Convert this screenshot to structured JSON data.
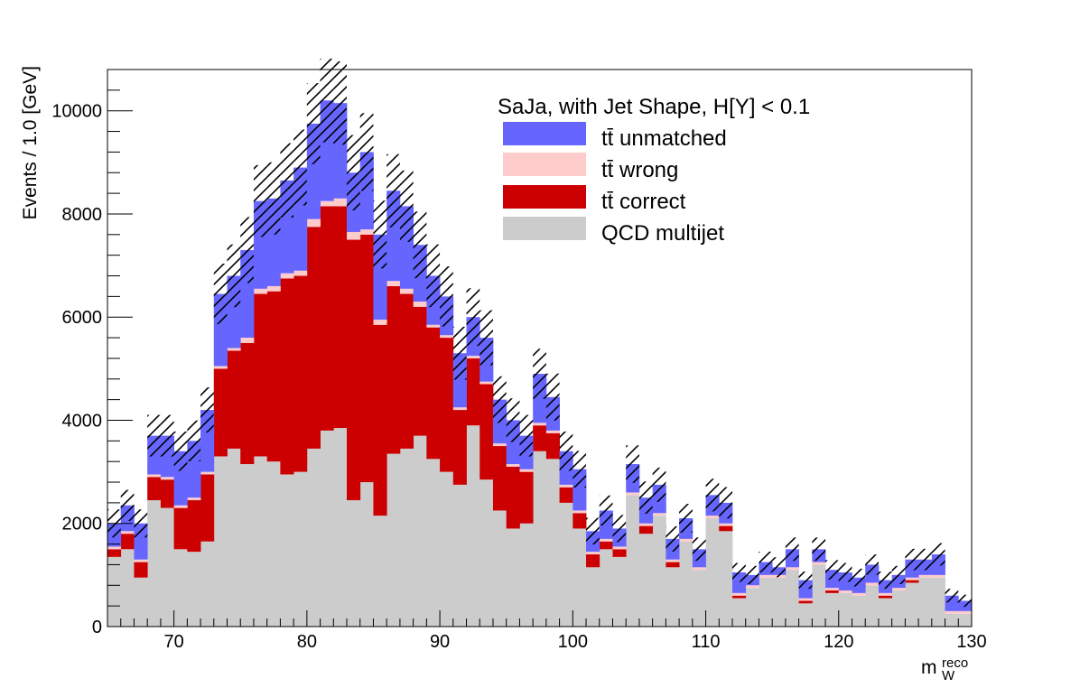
{
  "chart_data": {
    "type": "bar",
    "stacked": true,
    "x_bin_edges_start": 65,
    "bin_width": 1,
    "xlim": [
      65,
      130
    ],
    "ylim": [
      0,
      10800
    ],
    "xticks": [
      70,
      80,
      90,
      100,
      110,
      120,
      130
    ],
    "yticks": [
      0,
      2000,
      4000,
      6000,
      8000,
      10000
    ],
    "ylabel": "Events / 1.0 [GeV]",
    "xlabel_main": "m",
    "xlabel_sub": "W",
    "xlabel_sup": "reco",
    "legend_title": "SaJa, with Jet Shape, H[Y] < 0.1",
    "legend_position": "top-right",
    "grid": false,
    "series": [
      {
        "name": "QCD multijet",
        "color": "#cccccc",
        "values": [
          1350,
          1500,
          950,
          2450,
          2300,
          1500,
          1450,
          1650,
          3300,
          3450,
          3150,
          3300,
          3200,
          2950,
          3000,
          3450,
          3800,
          3850,
          2450,
          2800,
          2150,
          3350,
          3450,
          3700,
          3250,
          3000,
          2750,
          3900,
          2850,
          2250,
          1900,
          2000,
          3400,
          3250,
          2400,
          1900,
          1150,
          1500,
          1350,
          2550,
          1800,
          2150,
          1150,
          1650,
          1100,
          2100,
          1850,
          550,
          750,
          950,
          950,
          1100,
          450,
          1200,
          650,
          650,
          600,
          800,
          550,
          700,
          850,
          950,
          950,
          250,
          250
        ]
      },
      {
        "name": "tt̄ correct",
        "color": "#cc0000",
        "values": [
          150,
          300,
          300,
          450,
          550,
          800,
          1000,
          1300,
          1700,
          1900,
          2350,
          3150,
          3300,
          3800,
          3800,
          4300,
          4350,
          4300,
          5050,
          4800,
          3700,
          3250,
          3000,
          2500,
          2550,
          2600,
          1450,
          1300,
          1850,
          1250,
          1200,
          1000,
          500,
          500,
          300,
          300,
          250,
          150,
          150,
          0,
          150,
          0,
          100,
          0,
          0,
          0,
          100,
          50,
          0,
          0,
          0,
          0,
          50,
          0,
          50,
          0,
          0,
          0,
          50,
          0,
          50,
          0,
          0,
          0,
          0
        ]
      },
      {
        "name": "tt̄ wrong",
        "color": "#ffcccc",
        "values": [
          50,
          50,
          50,
          50,
          50,
          50,
          50,
          50,
          50,
          50,
          100,
          100,
          100,
          100,
          100,
          150,
          100,
          150,
          150,
          100,
          100,
          100,
          100,
          100,
          50,
          50,
          50,
          50,
          50,
          50,
          50,
          50,
          50,
          50,
          50,
          50,
          50,
          50,
          50,
          50,
          50,
          50,
          50,
          50,
          50,
          50,
          50,
          50,
          50,
          50,
          50,
          50,
          50,
          50,
          50,
          50,
          50,
          50,
          50,
          50,
          50,
          50,
          50,
          50,
          50
        ]
      },
      {
        "name": "tt̄ unmatched",
        "color": "#6666ff",
        "values": [
          450,
          500,
          700,
          750,
          800,
          1050,
          1100,
          1200,
          1400,
          1400,
          1700,
          1700,
          1700,
          1800,
          2000,
          1850,
          1950,
          1850,
          1150,
          1500,
          1650,
          1750,
          1600,
          1100,
          950,
          750,
          1050,
          750,
          850,
          850,
          850,
          650,
          950,
          650,
          650,
          800,
          400,
          550,
          350,
          550,
          500,
          550,
          400,
          400,
          350,
          400,
          400,
          400,
          200,
          250,
          150,
          350,
          350,
          250,
          350,
          350,
          300,
          350,
          250,
          250,
          350,
          300,
          400,
          300,
          200
        ]
      }
    ]
  }
}
